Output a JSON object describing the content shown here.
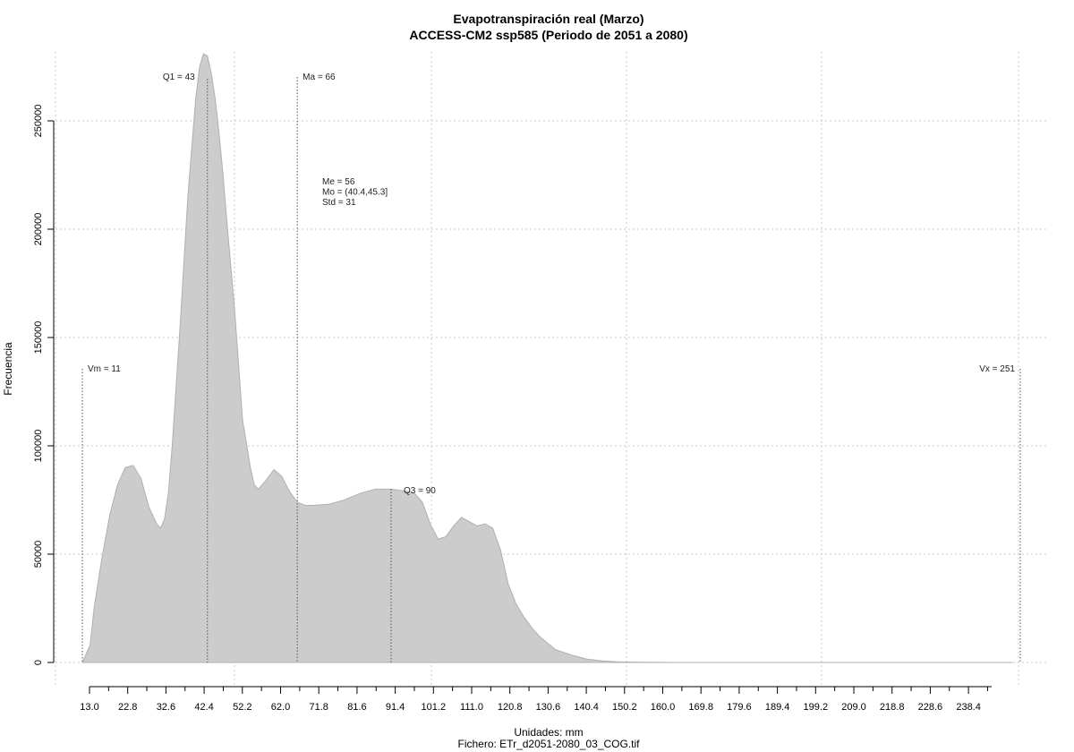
{
  "chart_data": {
    "type": "area",
    "title": "Evapotranspiración real (Marzo)",
    "subtitle": "ACCESS-CM2 ssp585 (Periodo de 2051 a 2080)",
    "xlabel": "Unidades: mm",
    "file_label": "Fichero: ETr_d2051-2080_03_COG.tif",
    "ylabel": "Frecuencia",
    "xlim": [
      11,
      251
    ],
    "ylim": [
      0,
      280000
    ],
    "grid": true,
    "fill_color": "#cccccc",
    "x_ticks": [
      "13.0",
      "22.8",
      "32.6",
      "42.4",
      "52.2",
      "62.0",
      "71.8",
      "81.6",
      "91.4",
      "101.2",
      "111.0",
      "120.8",
      "130.6",
      "140.4",
      "150.2",
      "160.0",
      "169.8",
      "179.6",
      "189.4",
      "199.2",
      "209.0",
      "218.8",
      "228.6",
      "238.4"
    ],
    "y_ticks": [
      "0",
      "50000",
      "100000",
      "150000",
      "200000",
      "250000"
    ],
    "density": {
      "x": [
        11,
        13,
        14,
        16,
        18,
        20,
        22,
        24,
        26,
        28,
        30,
        31,
        32,
        33,
        34,
        36,
        38,
        40,
        41,
        42,
        43,
        44,
        45,
        46,
        47,
        48,
        50,
        52,
        54,
        55,
        56,
        58,
        60,
        62,
        64,
        66,
        68,
        70,
        74,
        78,
        82,
        86,
        90,
        92,
        94,
        96,
        98,
        100,
        102,
        104,
        106,
        108,
        110,
        112,
        114,
        116,
        118,
        120,
        122,
        124,
        126,
        128,
        132,
        136,
        140,
        144,
        148,
        152,
        156,
        160,
        170,
        180,
        200,
        220,
        240,
        249
      ],
      "y": [
        0,
        8000,
        25000,
        48000,
        68000,
        82000,
        90000,
        91000,
        85000,
        72000,
        64000,
        62000,
        66000,
        78000,
        100000,
        155000,
        215000,
        260000,
        275000,
        281000,
        280000,
        272000,
        260000,
        244000,
        225000,
        203000,
        162000,
        112000,
        90000,
        82000,
        80000,
        84000,
        89000,
        86000,
        79000,
        74000,
        72500,
        72500,
        73000,
        75000,
        78000,
        80000,
        80000,
        79500,
        79000,
        78000,
        74000,
        64000,
        57000,
        58000,
        63000,
        67000,
        65000,
        63000,
        64000,
        62000,
        52000,
        36000,
        27000,
        21000,
        16000,
        12000,
        6000,
        3500,
        1600,
        700,
        300,
        150,
        80,
        40,
        10,
        5,
        3,
        2,
        1,
        0
      ]
    },
    "annotations": {
      "vm": {
        "label": "Vm = 11",
        "x": 11
      },
      "q1": {
        "label": "Q1 = 43",
        "x": 43
      },
      "ma": {
        "label": "Ma = 66",
        "x": 66
      },
      "q3": {
        "label": "Q3 = 90",
        "x": 90
      },
      "vx": {
        "label": "Vx = 251",
        "x": 251
      },
      "stats": [
        "Me = 56",
        "Mo = (40.4,45.3]",
        "Std = 31"
      ]
    }
  }
}
